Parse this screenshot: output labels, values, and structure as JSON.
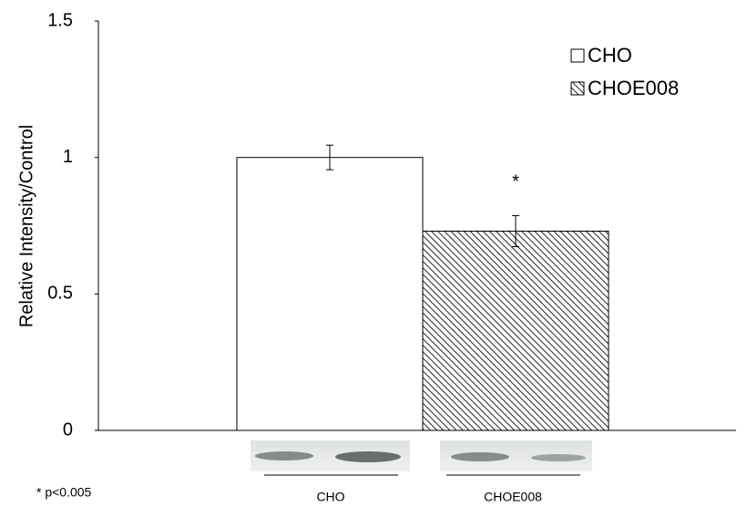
{
  "chart_data": {
    "type": "bar",
    "y_label": "Relative Intensity/Control",
    "categories": [
      null
    ],
    "series": [
      {
        "name": "CHO",
        "color": "#ffffff",
        "values": [
          1.0
        ],
        "errors": [
          0.045
        ]
      },
      {
        "name": "CHOE008",
        "color": "#333333",
        "pattern": "hatch",
        "values": [
          0.73
        ],
        "errors": [
          0.057
        ]
      }
    ],
    "ylim": [
      0,
      1.5
    ],
    "yticks": [
      0,
      0.5,
      1,
      1.5
    ],
    "grid": false,
    "legend": "top-right",
    "annotations": [
      {
        "text": "*",
        "series": 1
      }
    ],
    "blot_labels": [
      "CHO",
      "CHOE008"
    ],
    "footnote": "* p<0.005"
  }
}
